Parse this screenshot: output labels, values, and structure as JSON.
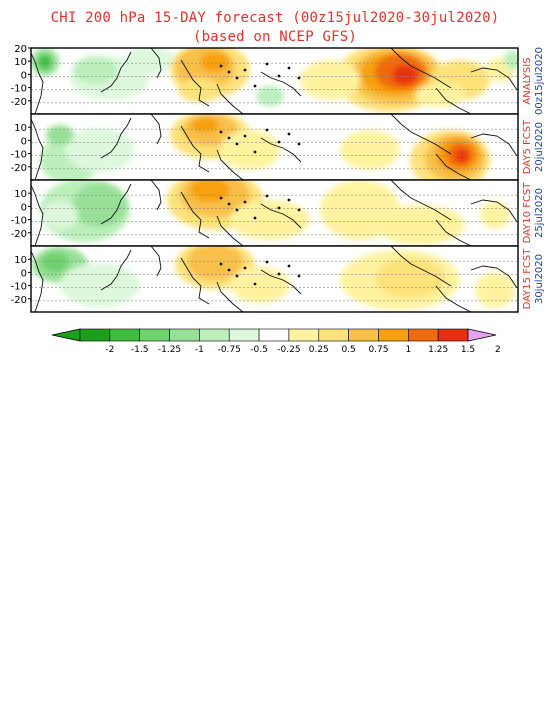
{
  "header": {
    "title_line1": "CHI 200 hPa 15-DAY forecast (00z15jul2020-30jul2020)",
    "title_line2": "(based on NCEP GFS)"
  },
  "panels": [
    {
      "label": "ANALYSIS",
      "date": "00z15jul2020"
    },
    {
      "label": "DAY5 FCST",
      "date": "20jul2020"
    },
    {
      "label": "DAY10 FCST",
      "date": "25jul2020"
    },
    {
      "label": "DAY15 FCST",
      "date": "30jul2020"
    }
  ],
  "lat_ticks": [
    "20",
    "10",
    "0",
    "-10",
    "-20"
  ],
  "colorbar": {
    "ticks": [
      "-2",
      "-1.5",
      "-1.25",
      "-1",
      "-0.75",
      "-0.5",
      "-0.25",
      "0.25",
      "0.5",
      "0.75",
      "1",
      "1.25",
      "1.5",
      "2"
    ],
    "colors": [
      "#1aa01a",
      "#3cbf3c",
      "#6ed26e",
      "#98e098",
      "#bcefbc",
      "#ddf8dd",
      "#ffffff",
      "#fff3a0",
      "#fde27a",
      "#f9c04a",
      "#f8a010",
      "#f06a10",
      "#e83010"
    ],
    "low_extend_color": "#1aa01a",
    "high_extend_color": "#e6a3ef"
  },
  "colors": {
    "title": "#e8302a",
    "panel_label": "#e8302a",
    "panel_date": "#2040b0"
  }
}
